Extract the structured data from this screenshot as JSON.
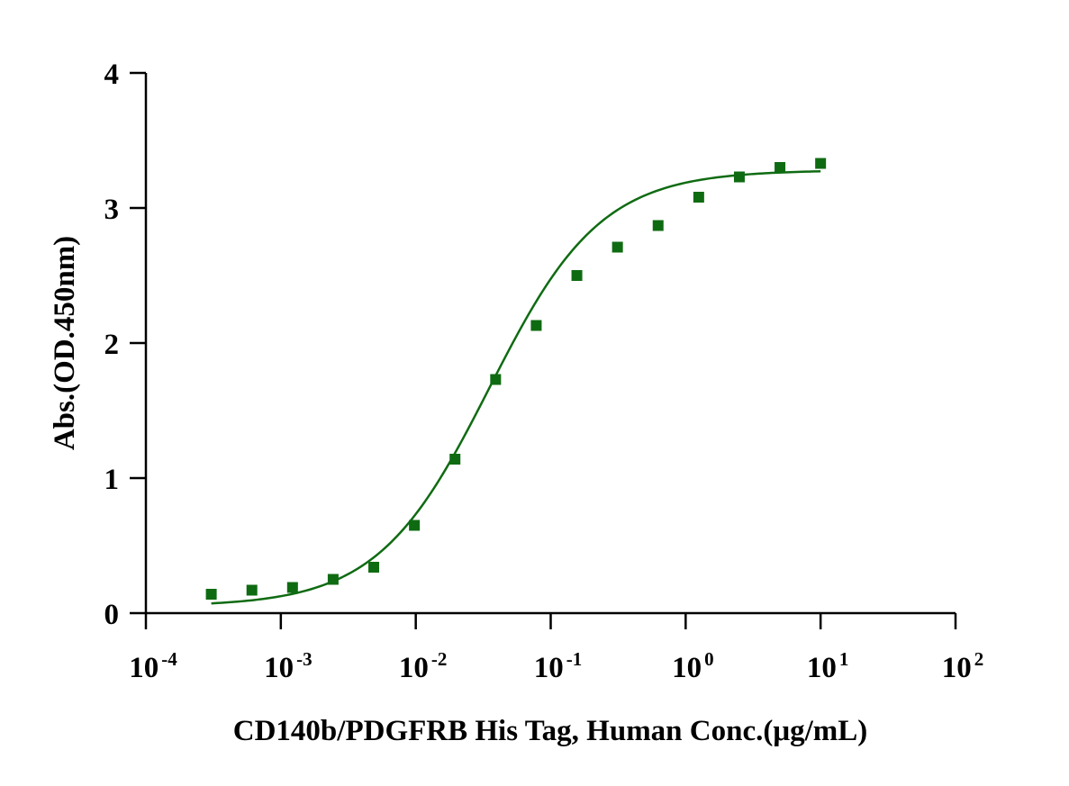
{
  "chart_data": {
    "type": "scatter",
    "title": "",
    "xlabel": "CD140b/PDGFRB His Tag, Human Conc.(μg/mL)",
    "ylabel": "Abs.(OD.450nm)",
    "x_scale": "log",
    "xlim": [
      0.0001,
      100
    ],
    "ylim": [
      0,
      4
    ],
    "x_ticks": [
      {
        "base": "10",
        "exp": "-4"
      },
      {
        "base": "10",
        "exp": "-3"
      },
      {
        "base": "10",
        "exp": "-2"
      },
      {
        "base": "10",
        "exp": "-1"
      },
      {
        "base": "10",
        "exp": "0"
      },
      {
        "base": "10",
        "exp": "1"
      },
      {
        "base": "10",
        "exp": "2"
      }
    ],
    "y_ticks": [
      "0",
      "1",
      "2",
      "3",
      "4"
    ],
    "grid": false,
    "legend": "none",
    "color": "#0f6b12",
    "series": [
      {
        "marker": "square",
        "x": [
          0.0003052,
          0.0006104,
          0.001221,
          0.002441,
          0.004883,
          0.009766,
          0.01953,
          0.03906,
          0.07813,
          0.1563,
          0.3125,
          0.625,
          1.25,
          2.5,
          5,
          10
        ],
        "y": [
          0.14,
          0.17,
          0.19,
          0.25,
          0.34,
          0.65,
          1.14,
          1.73,
          2.13,
          2.5,
          2.71,
          2.87,
          3.08,
          3.23,
          3.3,
          3.33
        ]
      }
    ],
    "fit_curve": {
      "model": "4PL",
      "bottom": 0.05,
      "top": 3.28,
      "ec50": 0.035,
      "hill": 1.05,
      "x_range": [
        0.0003052,
        10
      ]
    }
  }
}
